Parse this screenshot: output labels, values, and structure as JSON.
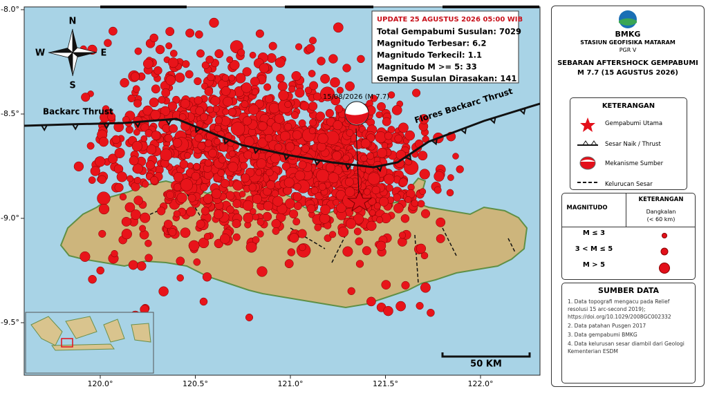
{
  "map": {
    "lat_ticks": [
      {
        "value": -8.0,
        "label": "-8.0°"
      },
      {
        "value": -8.5,
        "label": "-8.5°"
      },
      {
        "value": -9.0,
        "label": "-9.0°"
      },
      {
        "value": -9.5,
        "label": "-9.5°"
      }
    ],
    "lon_ticks": [
      {
        "value": 120.0,
        "label": "120.0°"
      },
      {
        "value": 120.5,
        "label": "120.5°"
      },
      {
        "value": 121.0,
        "label": "121.0°"
      },
      {
        "value": 121.5,
        "label": "121.5°"
      },
      {
        "value": 122.0,
        "label": "122.0°"
      }
    ],
    "compass": {
      "n": "N",
      "s": "S",
      "e": "E",
      "w": "W"
    },
    "faults": [
      "Backarc Thrust",
      "Flores Backarc Thrust"
    ],
    "mainshock_label": "15/08/2026 (M 7.7)",
    "scale_label": "50 KM"
  },
  "info_box": {
    "update": "UPDATE 25 AGUSTUS 2026 05:00 WIB",
    "lines": [
      "Total Gempabumi Susulan: 7029",
      "Magnitudo Terbesar: 6.2",
      "Magnitudo Terkecil: 1.1",
      "Magnitudo M >= 5: 33",
      "Gempa Susulan Dirasakan: 141"
    ]
  },
  "legend": {
    "agency": "BMKG",
    "station": "STASIUN GEOFISIKA MATARAM",
    "region": "PGR V",
    "title": "SEBARAN AFTERSHOCK GEMPABUMI",
    "subtitle": "M 7.7 (15 AGUSTUS 2026)",
    "keterangan": {
      "heading": "KETERANGAN",
      "items": [
        "Gempabumi Utama",
        "Sesar Naik / Thrust",
        "Mekanisme Sumber",
        "Kelurucan Sesar"
      ]
    },
    "magnitude": {
      "col1": "MAGNITUDO",
      "col2": "KETERANGAN",
      "sub1": "Dangkalan",
      "sub2": "(< 60 km)",
      "rows": [
        "M ≤ 3",
        "3 < M ≤ 5",
        "M > 5"
      ]
    },
    "sources": {
      "heading": "SUMBER DATA",
      "items": [
        "1. Data topografi mengacu pada Relief resolusi 15 arc-second 2019); https://doi.org/10.1029/2008GC002332",
        "2. Data patahan Pusgen 2017",
        "3. Data gempabumi BMKG",
        "4. Data kelurusan sesar diambil dari Geologi Kementerian ESDM"
      ]
    }
  }
}
